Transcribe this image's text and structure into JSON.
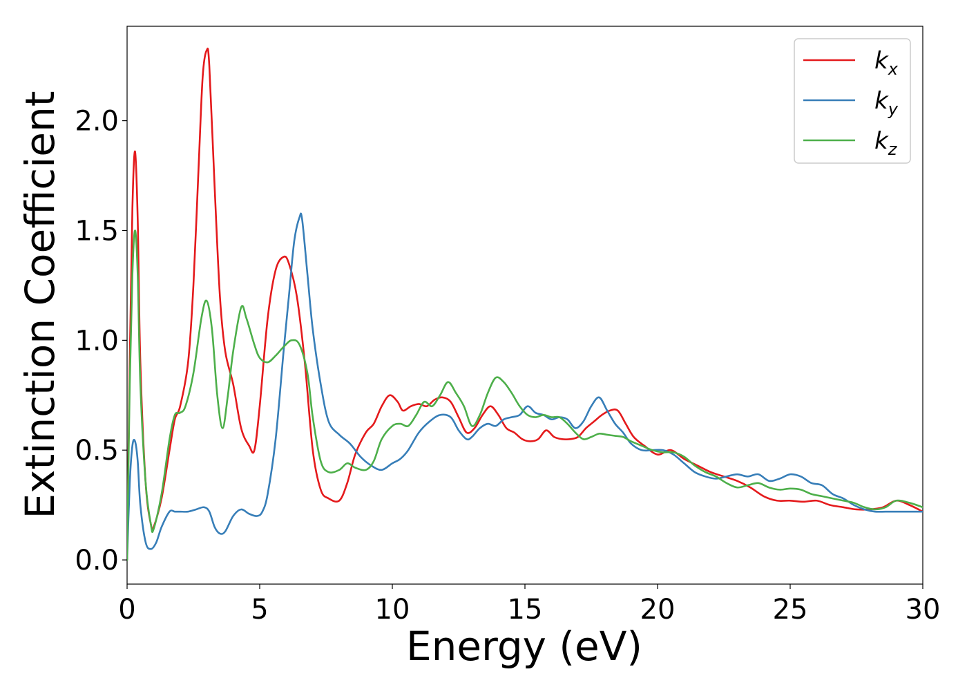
{
  "chart_data": {
    "type": "line",
    "xlabel": "Energy (eV)",
    "ylabel": "Extinction Coefficient",
    "xlim": [
      0,
      30
    ],
    "ylim": [
      -0.11,
      2.43
    ],
    "xticks": [
      0,
      5,
      10,
      15,
      20,
      25,
      30
    ],
    "xtick_labels": [
      "0",
      "5",
      "10",
      "15",
      "20",
      "25",
      "30"
    ],
    "yticks": [
      0.0,
      0.5,
      1.0,
      1.5,
      2.0
    ],
    "ytick_labels": [
      "0.0",
      "0.5",
      "1.0",
      "1.5",
      "2.0"
    ],
    "grid": false,
    "legend_position": "top-right",
    "series": [
      {
        "name": "k_x",
        "label_base": "k",
        "label_sub": "x",
        "color": "#e41a1c",
        "x": [
          0,
          0.1,
          0.2,
          0.3,
          0.4,
          0.5,
          0.7,
          0.9,
          1.0,
          1.3,
          1.6,
          1.8,
          2.0,
          2.3,
          2.5,
          2.7,
          2.85,
          3.0,
          3.1,
          3.3,
          3.5,
          3.7,
          4.0,
          4.3,
          4.6,
          4.8,
          5.0,
          5.3,
          5.6,
          5.9,
          6.1,
          6.4,
          6.7,
          7.0,
          7.3,
          7.6,
          8.0,
          8.3,
          8.6,
          9.0,
          9.3,
          9.6,
          9.9,
          10.2,
          10.4,
          10.7,
          11.0,
          11.3,
          11.6,
          11.9,
          12.2,
          12.5,
          12.8,
          13.1,
          13.4,
          13.7,
          14.0,
          14.3,
          14.6,
          14.9,
          15.2,
          15.5,
          15.8,
          16.1,
          16.4,
          16.7,
          17.0,
          17.3,
          17.6,
          17.9,
          18.2,
          18.5,
          18.8,
          19.1,
          19.5,
          20.0,
          20.5,
          21.0,
          21.5,
          22.0,
          22.5,
          23.0,
          23.5,
          24.0,
          24.5,
          25.0,
          25.5,
          26.0,
          26.5,
          27.0,
          27.5,
          28.0,
          28.5,
          29.0,
          29.5,
          30.0
        ],
        "y": [
          0.0,
          0.9,
          1.6,
          1.86,
          1.55,
          0.9,
          0.35,
          0.16,
          0.15,
          0.28,
          0.5,
          0.64,
          0.7,
          0.9,
          1.25,
          1.8,
          2.2,
          2.32,
          2.25,
          1.7,
          1.2,
          0.95,
          0.8,
          0.6,
          0.52,
          0.5,
          0.7,
          1.1,
          1.32,
          1.38,
          1.35,
          1.2,
          0.9,
          0.5,
          0.32,
          0.28,
          0.27,
          0.35,
          0.48,
          0.58,
          0.62,
          0.7,
          0.75,
          0.72,
          0.68,
          0.7,
          0.71,
          0.7,
          0.73,
          0.74,
          0.72,
          0.65,
          0.58,
          0.6,
          0.66,
          0.7,
          0.66,
          0.6,
          0.58,
          0.55,
          0.54,
          0.55,
          0.59,
          0.56,
          0.55,
          0.55,
          0.56,
          0.6,
          0.63,
          0.66,
          0.68,
          0.68,
          0.62,
          0.56,
          0.52,
          0.48,
          0.5,
          0.46,
          0.43,
          0.4,
          0.38,
          0.36,
          0.33,
          0.29,
          0.27,
          0.27,
          0.265,
          0.27,
          0.25,
          0.24,
          0.23,
          0.23,
          0.24,
          0.27,
          0.25,
          0.22
        ]
      },
      {
        "name": "k_y",
        "label_base": "k",
        "label_sub": "y",
        "color": "#377eb8",
        "x": [
          0,
          0.1,
          0.2,
          0.3,
          0.4,
          0.5,
          0.7,
          0.9,
          1.1,
          1.3,
          1.6,
          1.8,
          2.0,
          2.3,
          2.6,
          2.9,
          3.1,
          3.3,
          3.5,
          3.7,
          4.0,
          4.3,
          4.6,
          4.9,
          5.1,
          5.3,
          5.6,
          5.9,
          6.1,
          6.3,
          6.5,
          6.6,
          6.8,
          7.0,
          7.3,
          7.6,
          8.0,
          8.4,
          8.8,
          9.2,
          9.6,
          10.0,
          10.3,
          10.6,
          11.0,
          11.4,
          11.8,
          12.2,
          12.5,
          12.8,
          13.0,
          13.3,
          13.6,
          13.9,
          14.2,
          14.5,
          14.8,
          15.1,
          15.4,
          15.7,
          16.0,
          16.3,
          16.6,
          16.9,
          17.2,
          17.5,
          17.8,
          18.1,
          18.4,
          18.7,
          19.0,
          19.4,
          19.8,
          20.2,
          20.6,
          21.0,
          21.4,
          21.8,
          22.2,
          22.6,
          23.0,
          23.4,
          23.8,
          24.2,
          24.6,
          25.0,
          25.4,
          25.8,
          26.2,
          26.6,
          27.0,
          27.4,
          27.8,
          28.2,
          28.6,
          29.0,
          29.5,
          30.0
        ],
        "y": [
          0.0,
          0.35,
          0.52,
          0.54,
          0.45,
          0.25,
          0.08,
          0.05,
          0.08,
          0.15,
          0.22,
          0.22,
          0.22,
          0.22,
          0.23,
          0.24,
          0.22,
          0.15,
          0.12,
          0.13,
          0.2,
          0.23,
          0.21,
          0.2,
          0.22,
          0.3,
          0.55,
          0.95,
          1.2,
          1.45,
          1.56,
          1.55,
          1.3,
          1.05,
          0.8,
          0.63,
          0.57,
          0.53,
          0.47,
          0.43,
          0.41,
          0.44,
          0.46,
          0.5,
          0.58,
          0.63,
          0.66,
          0.65,
          0.59,
          0.55,
          0.56,
          0.6,
          0.62,
          0.61,
          0.64,
          0.65,
          0.66,
          0.7,
          0.67,
          0.66,
          0.64,
          0.65,
          0.64,
          0.6,
          0.63,
          0.7,
          0.74,
          0.68,
          0.62,
          0.58,
          0.53,
          0.5,
          0.5,
          0.5,
          0.48,
          0.44,
          0.4,
          0.38,
          0.37,
          0.38,
          0.39,
          0.38,
          0.39,
          0.36,
          0.37,
          0.39,
          0.38,
          0.35,
          0.34,
          0.3,
          0.28,
          0.25,
          0.23,
          0.22,
          0.22,
          0.22,
          0.22,
          0.22
        ]
      },
      {
        "name": "k_z",
        "label_base": "k",
        "label_sub": "z",
        "color": "#4daf4a",
        "x": [
          0,
          0.1,
          0.2,
          0.3,
          0.4,
          0.5,
          0.7,
          0.9,
          1.0,
          1.3,
          1.6,
          1.8,
          2.0,
          2.2,
          2.5,
          2.8,
          3.0,
          3.2,
          3.4,
          3.6,
          3.8,
          4.0,
          4.3,
          4.5,
          4.8,
          5.0,
          5.3,
          5.6,
          5.9,
          6.2,
          6.5,
          6.8,
          7.0,
          7.3,
          7.6,
          8.0,
          8.3,
          8.6,
          9.0,
          9.3,
          9.6,
          10.0,
          10.3,
          10.6,
          10.9,
          11.2,
          11.5,
          11.8,
          12.1,
          12.4,
          12.7,
          13.0,
          13.3,
          13.6,
          13.9,
          14.2,
          14.5,
          14.8,
          15.1,
          15.4,
          15.7,
          16.0,
          16.3,
          16.6,
          16.9,
          17.2,
          17.5,
          17.8,
          18.1,
          18.4,
          18.7,
          19.0,
          19.4,
          19.8,
          20.2,
          20.6,
          21.0,
          21.4,
          21.8,
          22.2,
          22.6,
          23.0,
          23.4,
          23.8,
          24.2,
          24.6,
          25.0,
          25.4,
          25.8,
          26.2,
          26.6,
          27.0,
          27.4,
          27.8,
          28.2,
          28.6,
          29.0,
          29.5,
          30.0
        ],
        "y": [
          0.0,
          0.8,
          1.3,
          1.5,
          1.3,
          0.8,
          0.35,
          0.16,
          0.14,
          0.3,
          0.55,
          0.66,
          0.67,
          0.7,
          0.85,
          1.1,
          1.18,
          1.05,
          0.75,
          0.6,
          0.75,
          0.95,
          1.15,
          1.1,
          0.98,
          0.92,
          0.9,
          0.93,
          0.97,
          1.0,
          0.98,
          0.85,
          0.65,
          0.45,
          0.4,
          0.41,
          0.44,
          0.42,
          0.41,
          0.45,
          0.55,
          0.61,
          0.62,
          0.61,
          0.66,
          0.72,
          0.7,
          0.75,
          0.81,
          0.76,
          0.7,
          0.61,
          0.66,
          0.76,
          0.83,
          0.81,
          0.76,
          0.7,
          0.66,
          0.65,
          0.66,
          0.65,
          0.65,
          0.62,
          0.58,
          0.55,
          0.56,
          0.575,
          0.57,
          0.565,
          0.56,
          0.54,
          0.52,
          0.5,
          0.49,
          0.49,
          0.47,
          0.43,
          0.4,
          0.38,
          0.35,
          0.33,
          0.34,
          0.35,
          0.33,
          0.32,
          0.325,
          0.32,
          0.3,
          0.29,
          0.28,
          0.27,
          0.26,
          0.24,
          0.23,
          0.24,
          0.27,
          0.26,
          0.24
        ]
      }
    ]
  }
}
